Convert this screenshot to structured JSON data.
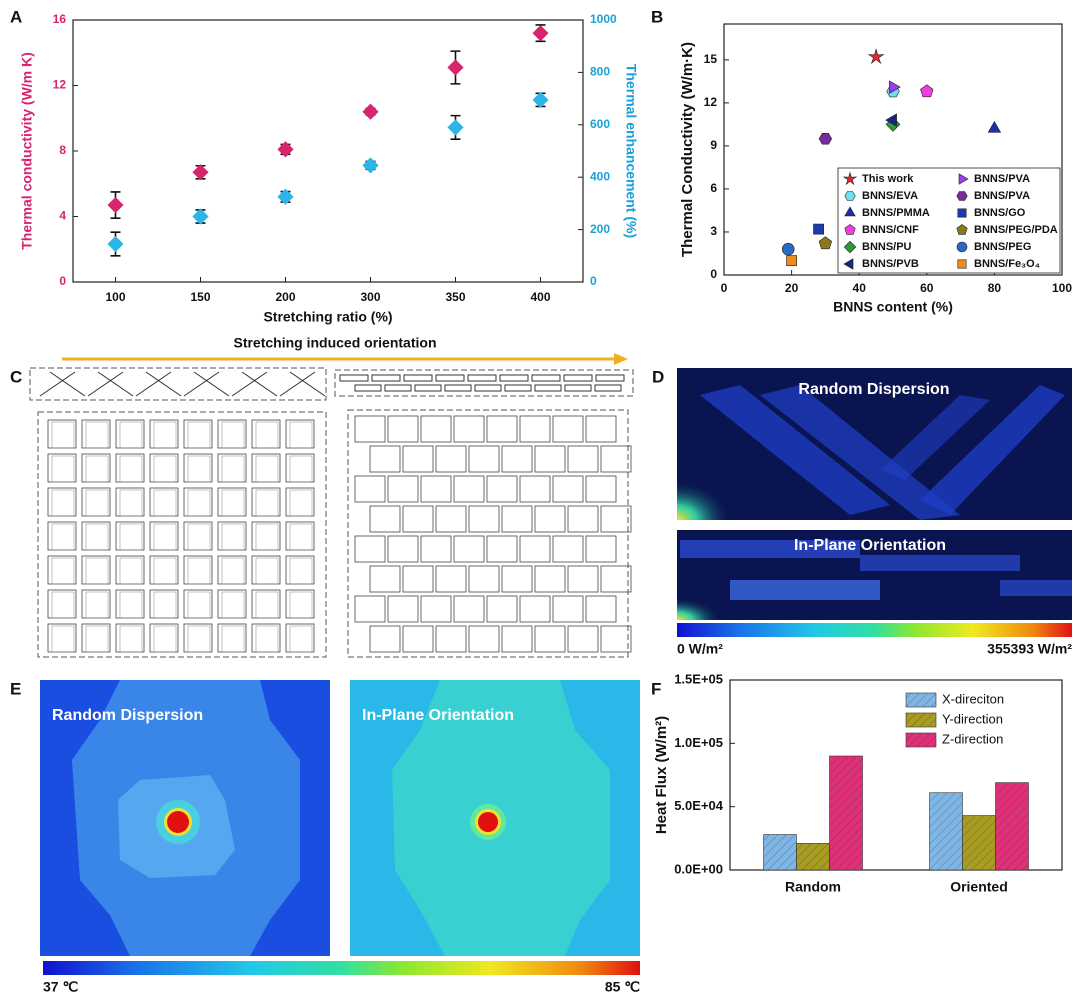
{
  "figure": {
    "panel_labels": [
      "A",
      "B",
      "C",
      "D",
      "E",
      "F"
    ],
    "panel_c": {
      "title": "Stretching induced orientation"
    },
    "panel_d": {
      "labels": [
        "Random Dispersion",
        "In-Plane Orientation"
      ],
      "scale": [
        "0 W/m²",
        "355393 W/m²"
      ]
    },
    "panel_e": {
      "labels": [
        "Random Dispersion",
        "In-Plane Orientation"
      ],
      "scale": [
        "37 ℃",
        "85 ℃"
      ]
    }
  },
  "chart_data": [
    {
      "type": "errorbar",
      "xlabel": "Stretching ratio (%)",
      "ylabel": "Thermal conductivity (W/m K)",
      "y2label": "Thermal enhancement (%)",
      "categories": [
        "100",
        "150",
        "200",
        "300",
        "350",
        "400"
      ],
      "ylim": [
        0,
        16
      ],
      "yticks": [
        0,
        4,
        8,
        12,
        16
      ],
      "y2lim": [
        0,
        1000
      ],
      "y2ticks": [
        0,
        200,
        400,
        600,
        800,
        1000
      ],
      "ycolor": "#d6246e",
      "y2color": "#1ba0d8",
      "series": [
        {
          "color": "#d6246e",
          "marker": "diamond",
          "values": [
            4.7,
            6.7,
            8.1,
            10.4,
            13.1,
            15.2
          ],
          "errors": [
            0.8,
            0.4,
            0.3,
            0.2,
            1.0,
            0.5
          ]
        },
        {
          "color": "#2bb5e8",
          "marker": "diamond",
          "axis": "y2",
          "values": [
            145,
            250,
            325,
            445,
            590,
            695
          ],
          "errors": [
            45,
            25,
            20,
            15,
            45,
            25
          ]
        }
      ]
    },
    {
      "type": "scatter",
      "xlabel": "BNNS content (%)",
      "ylabel": "Thermal Conductivity (W/m·K)",
      "xlim": [
        0,
        100
      ],
      "xticks": [
        0,
        20,
        40,
        60,
        80,
        100
      ],
      "ylim": [
        0,
        17.5
      ],
      "yticks": [
        0,
        3,
        6,
        9,
        12,
        15
      ],
      "legend": "lower-right",
      "series": [
        {
          "name": "This work",
          "color": "#e8262a",
          "marker": "star",
          "x": [
            45
          ],
          "values": [
            15.2
          ]
        },
        {
          "name": "BNNS/EVA",
          "color": "#6fe0f0",
          "marker": "hexagon",
          "x": [
            50
          ],
          "values": [
            12.8
          ]
        },
        {
          "name": "BNNS/PMMA",
          "color": "#1a2fb0",
          "marker": "triangle-up",
          "x": [
            80
          ],
          "values": [
            10.2
          ]
        },
        {
          "name": "BNNS/CNF",
          "color": "#f03ce0",
          "marker": "pentagon",
          "x": [
            60
          ],
          "values": [
            12.8
          ]
        },
        {
          "name": "BNNS/PU",
          "color": "#2a9a3a",
          "marker": "diamond",
          "x": [
            50
          ],
          "values": [
            10.5
          ]
        },
        {
          "name": "BNNS/PVB",
          "color": "#1a237e",
          "marker": "triangle-left",
          "x": [
            50
          ],
          "values": [
            10.8
          ]
        },
        {
          "name": "BNNS/PVA",
          "color": "#9a3ee8",
          "marker": "triangle-right",
          "x": [
            50
          ],
          "values": [
            13.1
          ]
        },
        {
          "name": "BNNS/PVA",
          "color": "#7a2a9a",
          "marker": "hexagon",
          "x": [
            30
          ],
          "values": [
            9.5
          ]
        },
        {
          "name": "BNNS/GO",
          "color": "#1a3ab0",
          "marker": "square",
          "x": [
            28
          ],
          "values": [
            3.2
          ]
        },
        {
          "name": "BNNS/PEG/PDA",
          "color": "#8a7a1a",
          "marker": "pentagon",
          "x": [
            30
          ],
          "values": [
            2.2
          ]
        },
        {
          "name": "BNNS/PEG",
          "color": "#2a6ac0",
          "marker": "circle",
          "x": [
            19
          ],
          "values": [
            1.8
          ]
        },
        {
          "name": "BNNS/Fe₃O₄",
          "color": "#f08a1a",
          "marker": "square",
          "x": [
            20
          ],
          "values": [
            1.0
          ]
        }
      ]
    },
    {
      "type": "bar",
      "ylabel": "Heat Flux (W/m²)",
      "categories": [
        "Random",
        "Oriented"
      ],
      "ylim": [
        0,
        150000
      ],
      "yticks": [
        {
          "value": 0,
          "label": "0.0E+00"
        },
        {
          "value": 50000,
          "label": "5.0E+04"
        },
        {
          "value": 100000,
          "label": "1.0E+05"
        },
        {
          "value": 150000,
          "label": "1.5E+05"
        }
      ],
      "legend": "upper-right",
      "series": [
        {
          "name": "X-direciton",
          "color": "#7fb6e6",
          "hatch": true,
          "values": [
            28000,
            61000
          ]
        },
        {
          "name": "Y-direction",
          "color": "#a89c22",
          "hatch": true,
          "values": [
            21000,
            43000
          ]
        },
        {
          "name": "Z-direction",
          "color": "#e0307a",
          "hatch": true,
          "values": [
            90000,
            69000
          ]
        }
      ]
    }
  ]
}
